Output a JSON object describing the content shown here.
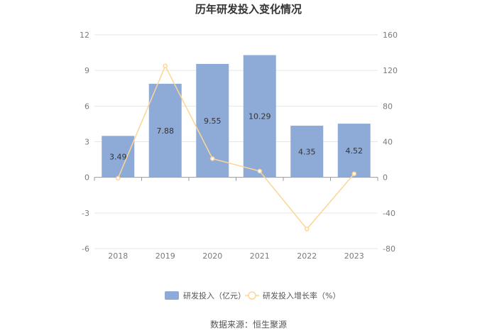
{
  "chart_data": {
    "type": "bar",
    "title": "历年研发投入变化情况",
    "categories": [
      "2018",
      "2019",
      "2020",
      "2021",
      "2022",
      "2023"
    ],
    "series": [
      {
        "name": "研发投入（亿元）",
        "type": "bar",
        "axis": "left",
        "values": [
          3.49,
          7.88,
          9.55,
          10.29,
          4.35,
          4.52
        ],
        "data_labels": [
          "3.49",
          "7.88",
          "9.55",
          "10.29",
          "4.35",
          "4.52"
        ]
      },
      {
        "name": "研发投入增长率（%）",
        "type": "line",
        "axis": "right",
        "values": [
          -1,
          125,
          21,
          7,
          -58,
          4
        ]
      }
    ],
    "left_axis": {
      "ylim": [
        -6,
        12
      ],
      "ticks": [
        "12",
        "9",
        "6",
        "3",
        "0",
        "-3",
        "-6"
      ]
    },
    "right_axis": {
      "ylim": [
        -80,
        160
      ],
      "ticks": [
        "160",
        "120",
        "80",
        "40",
        "0",
        "-40",
        "-80"
      ]
    },
    "grid": true,
    "legend_position": "bottom",
    "colors": {
      "bar": "#8eabd8",
      "line": "#fdd596",
      "axis": "#999999",
      "grid": "#e6e6e6"
    }
  },
  "source": "数据来源：恒生聚源"
}
